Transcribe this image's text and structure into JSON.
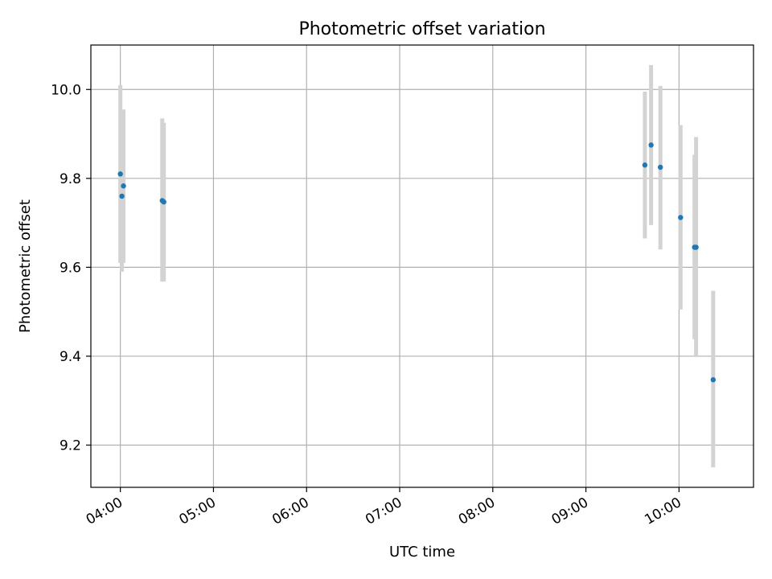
{
  "chart_data": {
    "type": "scatter",
    "title": "Photometric offset variation",
    "xlabel": "UTC time",
    "ylabel": "Photometric offset",
    "x_ticks": [
      "04:00",
      "05:00",
      "06:00",
      "07:00",
      "08:00",
      "09:00",
      "10:00"
    ],
    "y_ticks": [
      "9.2",
      "9.4",
      "9.6",
      "9.8",
      "10.0"
    ],
    "xlim": [
      "03:41",
      "10:48"
    ],
    "ylim": [
      9.105,
      10.1
    ],
    "grid": true,
    "colors": {
      "marker": "#1f77b4",
      "errorbar": "#d3d3d3",
      "grid": "#b0b0b0"
    },
    "points": [
      {
        "x": "04:00",
        "y": 9.81,
        "yerr_low": 9.61,
        "yerr_high": 10.01
      },
      {
        "x": "04:01",
        "y": 9.76,
        "yerr_low": 9.59,
        "yerr_high": 9.95
      },
      {
        "x": "04:02",
        "y": 9.783,
        "yerr_low": 9.61,
        "yerr_high": 9.955
      },
      {
        "x": "04:27",
        "y": 9.75,
        "yerr_low": 9.568,
        "yerr_high": 9.935
      },
      {
        "x": "04:28",
        "y": 9.747,
        "yerr_low": 9.568,
        "yerr_high": 9.925
      },
      {
        "x": "09:38",
        "y": 9.83,
        "yerr_low": 9.665,
        "yerr_high": 9.995
      },
      {
        "x": "09:42",
        "y": 9.875,
        "yerr_low": 9.695,
        "yerr_high": 10.055
      },
      {
        "x": "09:48",
        "y": 9.825,
        "yerr_low": 9.64,
        "yerr_high": 10.008
      },
      {
        "x": "10:01",
        "y": 9.712,
        "yerr_low": 9.505,
        "yerr_high": 9.92
      },
      {
        "x": "10:10",
        "y": 9.645,
        "yerr_low": 9.438,
        "yerr_high": 9.853
      },
      {
        "x": "10:11",
        "y": 9.645,
        "yerr_low": 9.398,
        "yerr_high": 9.893
      },
      {
        "x": "10:22",
        "y": 9.347,
        "yerr_low": 9.15,
        "yerr_high": 9.547
      }
    ]
  }
}
